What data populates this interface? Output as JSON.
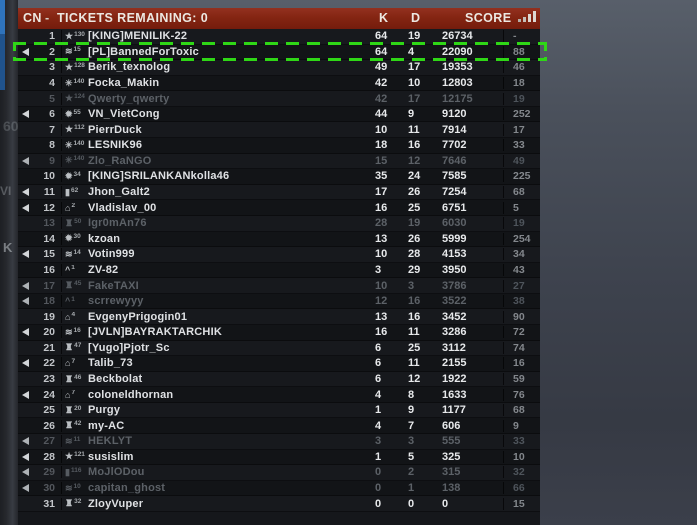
{
  "header": {
    "team_label": "CN",
    "dash": "-",
    "tickets_label": "TICKETS REMAINING: 0",
    "col_kills": "K",
    "col_deaths": "D",
    "col_score": "SCORE"
  },
  "selection_color": "#2fd716",
  "background_remnants": {
    "a": "60",
    "b": "VI",
    "c": "K"
  },
  "rank_glyphs": {
    "star": "★",
    "wheel": "✳",
    "burst": "✹",
    "chevrons": "≋",
    "bar": "▮",
    "roof": "⌂",
    "caret": "^",
    "knight": "♜"
  },
  "players": [
    {
      "num": "1",
      "rank_icon": "star",
      "level": "130",
      "name": "[KING]MENILIK-22",
      "k": "64",
      "d": "19",
      "score": "26734",
      "ping": "-",
      "dead": false,
      "voice": false,
      "selected": false
    },
    {
      "num": "2",
      "rank_icon": "chevrons",
      "level": "15",
      "name": "[PL]BannedForToxic",
      "k": "64",
      "d": "4",
      "score": "22090",
      "ping": "88",
      "dead": false,
      "voice": true,
      "selected": true
    },
    {
      "num": "3",
      "rank_icon": "star",
      "level": "128",
      "name": "Berik_texnolog",
      "k": "49",
      "d": "17",
      "score": "19353",
      "ping": "46",
      "dead": false,
      "voice": false,
      "selected": false
    },
    {
      "num": "4",
      "rank_icon": "wheel",
      "level": "140",
      "name": "Focka_Makin",
      "k": "42",
      "d": "10",
      "score": "12803",
      "ping": "18",
      "dead": false,
      "voice": false,
      "selected": false
    },
    {
      "num": "5",
      "rank_icon": "star",
      "level": "124",
      "name": "Qwerty_qwerty",
      "k": "42",
      "d": "17",
      "score": "12175",
      "ping": "19",
      "dead": true,
      "voice": false,
      "selected": false
    },
    {
      "num": "6",
      "rank_icon": "burst",
      "level": "55",
      "name": "VN_VietCong",
      "k": "44",
      "d": "9",
      "score": "9120",
      "ping": "252",
      "dead": false,
      "voice": true,
      "selected": false
    },
    {
      "num": "7",
      "rank_icon": "star",
      "level": "112",
      "name": "PierrDuck",
      "k": "10",
      "d": "11",
      "score": "7914",
      "ping": "17",
      "dead": false,
      "voice": false,
      "selected": false
    },
    {
      "num": "8",
      "rank_icon": "wheel",
      "level": "140",
      "name": "LESNIK96",
      "k": "18",
      "d": "16",
      "score": "7702",
      "ping": "33",
      "dead": false,
      "voice": false,
      "selected": false
    },
    {
      "num": "9",
      "rank_icon": "wheel",
      "level": "140",
      "name": "Zlo_RaNGO",
      "k": "15",
      "d": "12",
      "score": "7646",
      "ping": "49",
      "dead": true,
      "voice": true,
      "selected": false
    },
    {
      "num": "10",
      "rank_icon": "burst",
      "level": "34",
      "name": "[KING]SRILANKANkolla46",
      "k": "35",
      "d": "24",
      "score": "7585",
      "ping": "225",
      "dead": false,
      "voice": false,
      "selected": false
    },
    {
      "num": "11",
      "rank_icon": "bar",
      "level": "62",
      "name": "Jhon_Galt2",
      "k": "17",
      "d": "26",
      "score": "7254",
      "ping": "68",
      "dead": false,
      "voice": true,
      "selected": false
    },
    {
      "num": "12",
      "rank_icon": "roof",
      "level": "2",
      "name": "Vladislav_00",
      "k": "16",
      "d": "25",
      "score": "6751",
      "ping": "5",
      "dead": false,
      "voice": true,
      "selected": false
    },
    {
      "num": "13",
      "rank_icon": "knight",
      "level": "50",
      "name": "Igr0mAn76",
      "k": "28",
      "d": "19",
      "score": "6030",
      "ping": "19",
      "dead": true,
      "voice": false,
      "selected": false
    },
    {
      "num": "14",
      "rank_icon": "burst",
      "level": "30",
      "name": "kzoan",
      "k": "13",
      "d": "26",
      "score": "5999",
      "ping": "254",
      "dead": false,
      "voice": false,
      "selected": false
    },
    {
      "num": "15",
      "rank_icon": "chevrons",
      "level": "14",
      "name": "Votin999",
      "k": "10",
      "d": "28",
      "score": "4153",
      "ping": "34",
      "dead": false,
      "voice": true,
      "selected": false
    },
    {
      "num": "16",
      "rank_icon": "caret",
      "level": "1",
      "name": "ZV-82",
      "k": "3",
      "d": "29",
      "score": "3950",
      "ping": "43",
      "dead": false,
      "voice": false,
      "selected": false
    },
    {
      "num": "17",
      "rank_icon": "knight",
      "level": "45",
      "name": "FakeTAXI",
      "k": "10",
      "d": "3",
      "score": "3786",
      "ping": "27",
      "dead": true,
      "voice": true,
      "selected": false
    },
    {
      "num": "18",
      "rank_icon": "caret",
      "level": "1",
      "name": "scrrewyyy",
      "k": "12",
      "d": "16",
      "score": "3522",
      "ping": "38",
      "dead": true,
      "voice": true,
      "selected": false
    },
    {
      "num": "19",
      "rank_icon": "roof",
      "level": "4",
      "name": "EvgenyPrigogin01",
      "k": "13",
      "d": "16",
      "score": "3452",
      "ping": "90",
      "dead": false,
      "voice": false,
      "selected": false
    },
    {
      "num": "20",
      "rank_icon": "chevrons",
      "level": "16",
      "name": "[JVLN]BAYRAKTARCHIK",
      "k": "16",
      "d": "11",
      "score": "3286",
      "ping": "72",
      "dead": false,
      "voice": true,
      "selected": false
    },
    {
      "num": "21",
      "rank_icon": "knight",
      "level": "47",
      "name": "[Yugo]Pjotr_Sc",
      "k": "6",
      "d": "25",
      "score": "3112",
      "ping": "74",
      "dead": false,
      "voice": false,
      "selected": false
    },
    {
      "num": "22",
      "rank_icon": "roof",
      "level": "7",
      "name": "Talib_73",
      "k": "6",
      "d": "11",
      "score": "2155",
      "ping": "16",
      "dead": false,
      "voice": true,
      "selected": false
    },
    {
      "num": "23",
      "rank_icon": "knight",
      "level": "46",
      "name": "Beckbolat",
      "k": "6",
      "d": "12",
      "score": "1922",
      "ping": "59",
      "dead": false,
      "voice": false,
      "selected": false
    },
    {
      "num": "24",
      "rank_icon": "roof",
      "level": "7",
      "name": "coloneldhornan",
      "k": "4",
      "d": "8",
      "score": "1633",
      "ping": "76",
      "dead": false,
      "voice": true,
      "selected": false
    },
    {
      "num": "25",
      "rank_icon": "knight",
      "level": "20",
      "name": "Purgy",
      "k": "1",
      "d": "9",
      "score": "1177",
      "ping": "68",
      "dead": false,
      "voice": false,
      "selected": false
    },
    {
      "num": "26",
      "rank_icon": "knight",
      "level": "42",
      "name": "my-AC",
      "k": "4",
      "d": "7",
      "score": "606",
      "ping": "9",
      "dead": false,
      "voice": false,
      "selected": false
    },
    {
      "num": "27",
      "rank_icon": "chevrons",
      "level": "11",
      "name": "HEKLYT",
      "k": "3",
      "d": "3",
      "score": "555",
      "ping": "33",
      "dead": true,
      "voice": true,
      "selected": false
    },
    {
      "num": "28",
      "rank_icon": "star",
      "level": "121",
      "name": "susislim",
      "k": "1",
      "d": "5",
      "score": "325",
      "ping": "10",
      "dead": false,
      "voice": true,
      "selected": false
    },
    {
      "num": "29",
      "rank_icon": "bar",
      "level": "116",
      "name": "MoJlODou",
      "k": "0",
      "d": "2",
      "score": "315",
      "ping": "32",
      "dead": true,
      "voice": true,
      "selected": false
    },
    {
      "num": "30",
      "rank_icon": "chevrons",
      "level": "10",
      "name": "capitan_ghost",
      "k": "0",
      "d": "1",
      "score": "138",
      "ping": "66",
      "dead": true,
      "voice": true,
      "selected": false
    },
    {
      "num": "31",
      "rank_icon": "knight",
      "level": "32",
      "name": "ZloyVuper",
      "k": "0",
      "d": "0",
      "score": "0",
      "ping": "15",
      "dead": false,
      "voice": false,
      "selected": false
    }
  ]
}
